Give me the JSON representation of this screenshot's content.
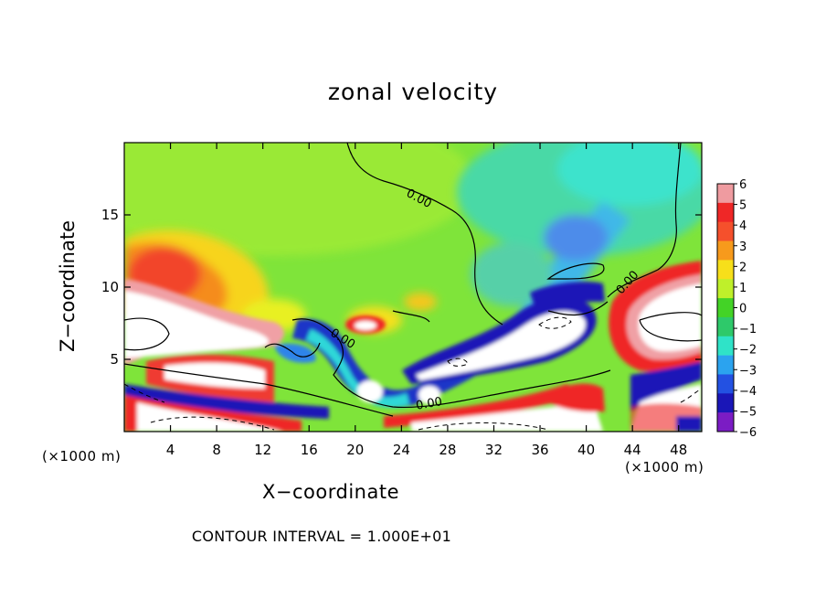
{
  "chart_data": {
    "type": "heatmap",
    "title": "zonal velocity",
    "xlabel": "X−coordinate",
    "ylabel": "Z−coordinate",
    "x_unit": "(×1000 m)",
    "xlim": [
      0,
      50
    ],
    "ylim": [
      0,
      20
    ],
    "xticks": [
      4,
      8,
      12,
      16,
      20,
      24,
      28,
      32,
      36,
      40,
      44,
      48
    ],
    "yticks": [
      5,
      10,
      15
    ],
    "colorbar": {
      "levels": [
        6,
        5,
        4,
        3,
        2,
        1,
        0,
        -1,
        -2,
        -3,
        -4,
        -5,
        -6
      ],
      "colors": [
        "#ef9ba0",
        "#ef2727",
        "#f5502c",
        "#f79a1c",
        "#f7df1a",
        "#bff02a",
        "#43d326",
        "#2ec96a",
        "#2fe3c8",
        "#2ba3ef",
        "#2351e2",
        "#1a16b7",
        "#7b1cc4"
      ]
    },
    "contour_labels": [
      {
        "text": "0.00",
        "x": 25.5,
        "y": 16.1,
        "angle": 28
      },
      {
        "text": "0.00",
        "x": 18.9,
        "y": 6.4,
        "angle": 32
      },
      {
        "text": "0.00",
        "x": 26.4,
        "y": 1.9,
        "angle": -10
      },
      {
        "text": "0.00",
        "x": 43.6,
        "y": 10.3,
        "angle": -48
      }
    ],
    "footer": "CONTOUR INTERVAL = 1.000E+01"
  }
}
